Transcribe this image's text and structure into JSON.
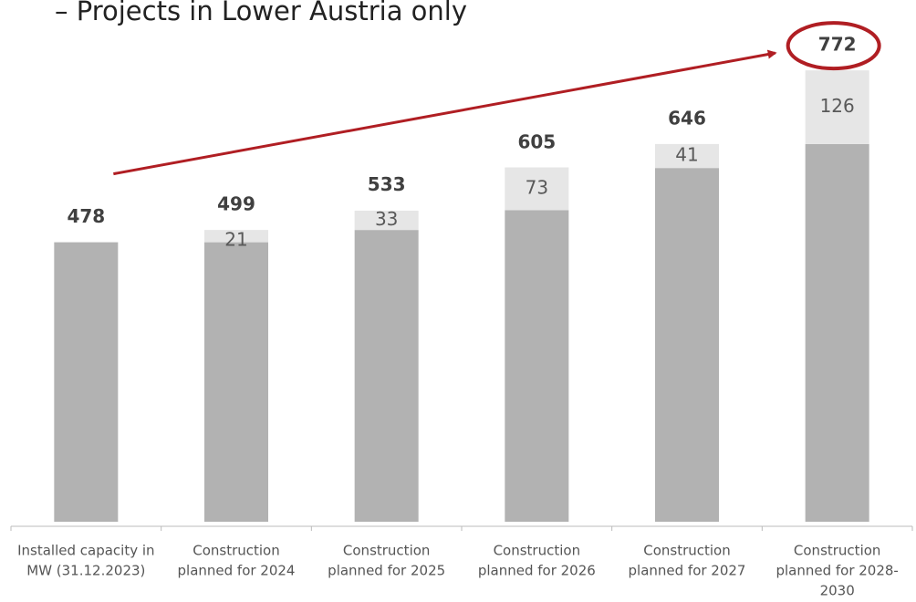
{
  "chart_data": {
    "type": "stacked_bar",
    "title": "– Projects in Lower Austria only",
    "categories": [
      [
        "Installed capacity in",
        "MW (31.12.2023)"
      ],
      [
        "Construction",
        "planned for 2024"
      ],
      [
        "Construction",
        "planned for 2025"
      ],
      [
        "Construction",
        "planned for 2026"
      ],
      [
        "Construction",
        "planned for 2027"
      ],
      [
        "Construction",
        "planned for 2028-",
        "2030"
      ]
    ],
    "series": [
      {
        "color": "#b2b2b2",
        "values": [
          478,
          478,
          499,
          533,
          605,
          646
        ]
      },
      {
        "color": "#e6e6e6",
        "values": [
          null,
          21,
          33,
          73,
          41,
          126
        ]
      }
    ],
    "totals": [
      478,
      499,
      533,
      605,
      646,
      772
    ],
    "ylim": [
      0,
      780
    ],
    "highlight_color": "#b01e23"
  }
}
